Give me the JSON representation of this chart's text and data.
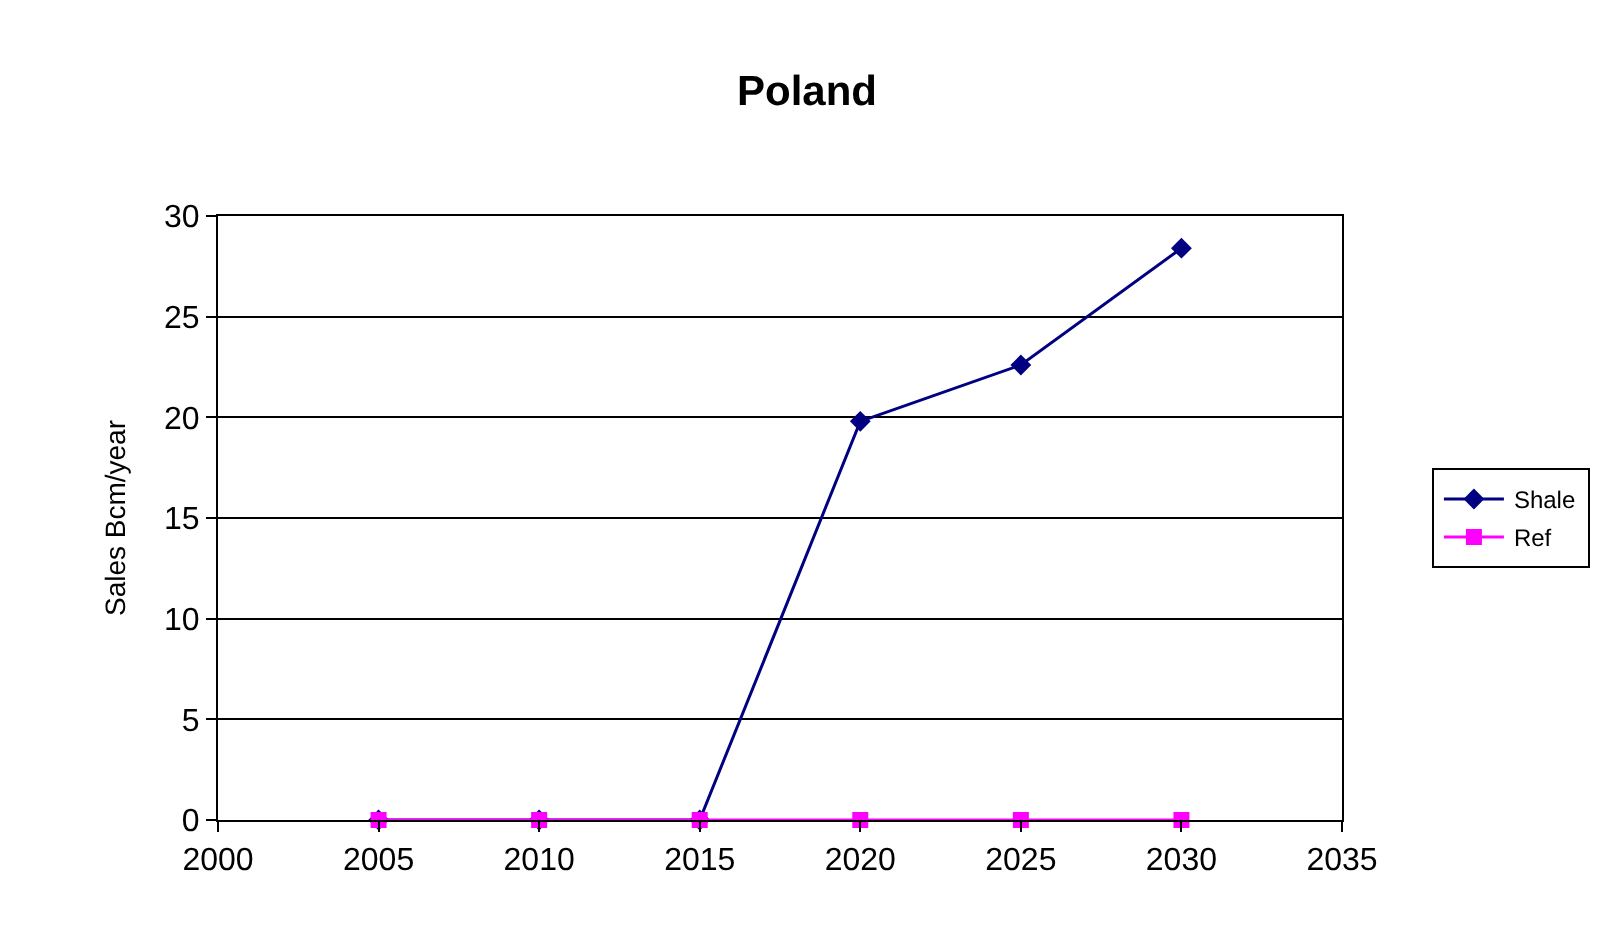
{
  "chart_data": {
    "type": "line",
    "title": "Poland",
    "ylabel": "Sales Bcm/year",
    "x": [
      2005,
      2010,
      2015,
      2020,
      2025,
      2030
    ],
    "series": [
      {
        "name": "Shale",
        "color": "#000080",
        "marker": "diamond",
        "values": [
          0,
          0,
          0,
          19.8,
          22.6,
          28.4
        ]
      },
      {
        "name": "Ref",
        "color": "#ff00ff",
        "marker": "square",
        "values": [
          0,
          0,
          0,
          0,
          0,
          0
        ]
      }
    ],
    "xlim": [
      2000,
      2035
    ],
    "xticks": [
      2000,
      2005,
      2010,
      2015,
      2020,
      2025,
      2030,
      2035
    ],
    "ylim": [
      0,
      30
    ],
    "yticks": [
      0,
      5,
      10,
      15,
      20,
      25,
      30
    ],
    "grid": "y",
    "legend": "right",
    "line_style": "solid"
  }
}
